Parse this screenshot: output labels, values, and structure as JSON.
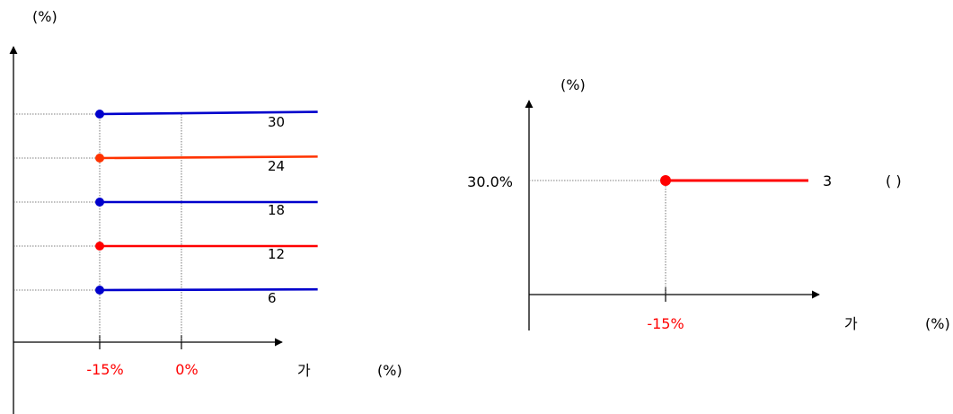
{
  "colors": {
    "blue": "#0000cc",
    "orange": "#ff3300",
    "red": "#ff0000",
    "axis": "#000000",
    "guide": "#555555"
  },
  "chart_data": [
    {
      "type": "line",
      "ylabel": "(%)",
      "xlabel_text": "가",
      "xlabel_unit": "(%)",
      "xticks": [
        {
          "label": "-15%",
          "value": -15
        },
        {
          "label": "0%",
          "value": 0
        }
      ],
      "series": [
        {
          "label": "30",
          "start_x": -15,
          "end_x": 25,
          "y_start": 30,
          "y_end": 30.3,
          "color": "blue"
        },
        {
          "label": "24",
          "start_x": -15,
          "end_x": 25,
          "y_start": 24,
          "y_end": 24.2,
          "color": "orange"
        },
        {
          "label": "18",
          "start_x": -15,
          "end_x": 25,
          "y_start": 18,
          "y_end": 18,
          "color": "blue"
        },
        {
          "label": "12",
          "start_x": -15,
          "end_x": 25,
          "y_start": 12,
          "y_end": 12,
          "color": "red"
        },
        {
          "label": "6",
          "start_x": -15,
          "end_x": 25,
          "y_start": 6,
          "y_end": 6.1,
          "color": "blue"
        }
      ]
    },
    {
      "type": "line",
      "ylabel": "(%)",
      "xlabel_text": "가",
      "xlabel_unit": "(%)",
      "xticks": [
        {
          "label": "-15%",
          "value": -15
        }
      ],
      "ytick_label": "30.0%",
      "series": [
        {
          "label": "3",
          "suffix": "(     )",
          "start_x": -15,
          "end_x": 25,
          "y": 30,
          "color": "red"
        }
      ]
    }
  ]
}
